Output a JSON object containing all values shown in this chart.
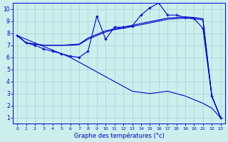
{
  "xlabel": "Graphe des températures (°c)",
  "background_color": "#cceeed",
  "grid_color": "#aad8d8",
  "line_color": "#0000cc",
  "xlim_min": -0.5,
  "xlim_max": 23.5,
  "ylim_min": 0.5,
  "ylim_max": 10.5,
  "yticks": [
    1,
    2,
    3,
    4,
    5,
    6,
    7,
    8,
    9,
    10
  ],
  "xticks": [
    0,
    1,
    2,
    3,
    4,
    5,
    6,
    7,
    8,
    9,
    10,
    11,
    12,
    13,
    14,
    15,
    16,
    17,
    18,
    19,
    20,
    21,
    22,
    23
  ],
  "hours": [
    0,
    1,
    2,
    3,
    4,
    5,
    6,
    7,
    8,
    9,
    10,
    11,
    12,
    13,
    14,
    15,
    16,
    17,
    18,
    19,
    20,
    21,
    22,
    23
  ],
  "jagged_y": [
    7.8,
    7.2,
    7.0,
    6.7,
    6.5,
    6.3,
    6.1,
    6.0,
    6.5,
    9.4,
    7.5,
    8.5,
    8.5,
    8.6,
    9.5,
    10.1,
    10.5,
    9.5,
    9.5,
    9.3,
    9.2,
    8.4,
    2.8,
    1.0
  ],
  "trend1_y": [
    7.8,
    7.2,
    7.1,
    7.0,
    7.0,
    7.0,
    7.0,
    7.05,
    7.5,
    7.8,
    8.1,
    8.3,
    8.4,
    8.55,
    8.7,
    8.85,
    9.0,
    9.15,
    9.2,
    9.25,
    9.2,
    9.1,
    2.8,
    1.0
  ],
  "trend2_y": [
    7.8,
    7.2,
    7.1,
    7.0,
    7.0,
    7.0,
    7.05,
    7.1,
    7.6,
    7.9,
    8.2,
    8.35,
    8.5,
    8.65,
    8.8,
    8.95,
    9.1,
    9.25,
    9.3,
    9.35,
    9.3,
    9.2,
    2.8,
    1.0
  ],
  "diag_y": [
    7.8,
    7.5,
    7.2,
    6.9,
    6.6,
    6.3,
    6.0,
    5.6,
    5.2,
    4.8,
    4.4,
    4.0,
    3.6,
    3.2,
    3.1,
    3.0,
    3.1,
    3.2,
    3.0,
    2.8,
    2.5,
    2.2,
    1.8,
    1.0
  ]
}
